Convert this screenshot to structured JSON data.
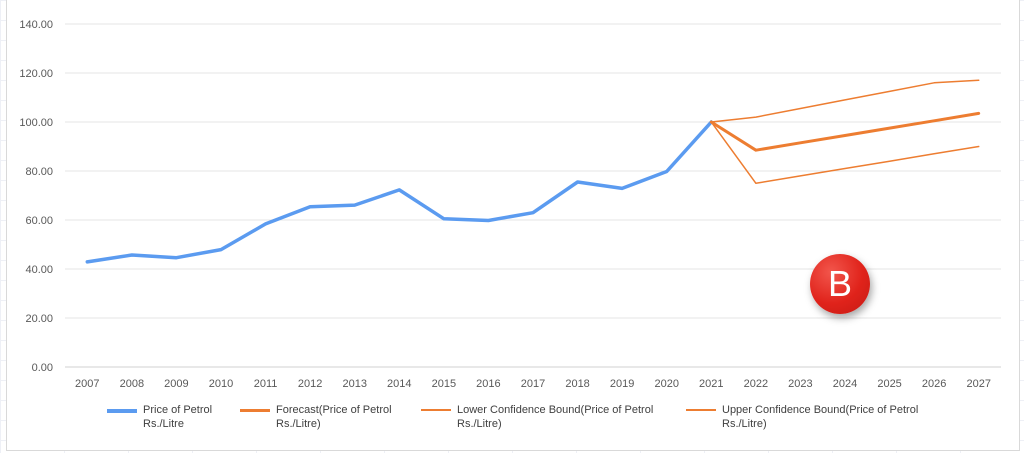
{
  "chart_data": {
    "type": "line",
    "title": "",
    "xlabel": "",
    "ylabel": "",
    "categories": [
      "2007",
      "2008",
      "2009",
      "2010",
      "2011",
      "2012",
      "2013",
      "2014",
      "2015",
      "2016",
      "2017",
      "2018",
      "2019",
      "2020",
      "2021",
      "2022",
      "2023",
      "2024",
      "2025",
      "2026",
      "2027"
    ],
    "y_ticks": [
      "0.00",
      "20.00",
      "40.00",
      "60.00",
      "80.00",
      "100.00",
      "120.00",
      "140.00"
    ],
    "ylim": [
      0,
      140
    ],
    "grid": true,
    "legend_position": "bottom",
    "series": [
      {
        "name": "Price of Petrol Rs./Litre",
        "color": "#5b9bf0",
        "values": [
          42.9,
          45.7,
          44.6,
          47.9,
          58.4,
          65.4,
          66.1,
          72.3,
          60.5,
          59.8,
          63.0,
          75.5,
          72.9,
          79.8,
          100.0,
          null,
          null,
          null,
          null,
          null,
          null
        ]
      },
      {
        "name": "Forecast(Price of Petrol Rs./Litre)",
        "color": "#ed7d31",
        "values": [
          null,
          null,
          null,
          null,
          null,
          null,
          null,
          null,
          null,
          null,
          null,
          null,
          null,
          null,
          100.0,
          88.5,
          91.5,
          94.5,
          97.5,
          100.5,
          103.5
        ]
      },
      {
        "name": "Lower Confidence Bound(Price of Petrol Rs./Litre)",
        "color": "#ed7d31",
        "values": [
          null,
          null,
          null,
          null,
          null,
          null,
          null,
          null,
          null,
          null,
          null,
          null,
          null,
          null,
          100.0,
          75.0,
          78.0,
          81.0,
          84.0,
          87.0,
          90.0
        ]
      },
      {
        "name": "Upper Confidence Bound(Price of Petrol Rs./Litre)",
        "color": "#ed7d31",
        "values": [
          null,
          null,
          null,
          null,
          null,
          null,
          null,
          null,
          null,
          null,
          null,
          null,
          null,
          null,
          100.0,
          102.0,
          105.5,
          109.0,
          112.5,
          116.0,
          117.0
        ]
      }
    ]
  },
  "legend": [
    {
      "line1": "Price of Petrol",
      "line2": "Rs./Litre"
    },
    {
      "line1": "Forecast(Price of Petrol",
      "line2": "Rs./Litre)"
    },
    {
      "line1": "Lower Confidence Bound(Price of Petrol",
      "line2": "Rs./Litre)"
    },
    {
      "line1": "Upper Confidence Bound(Price of Petrol",
      "line2": "Rs./Litre)"
    }
  ],
  "badge": {
    "letter": "B",
    "color": "#e0231b"
  }
}
